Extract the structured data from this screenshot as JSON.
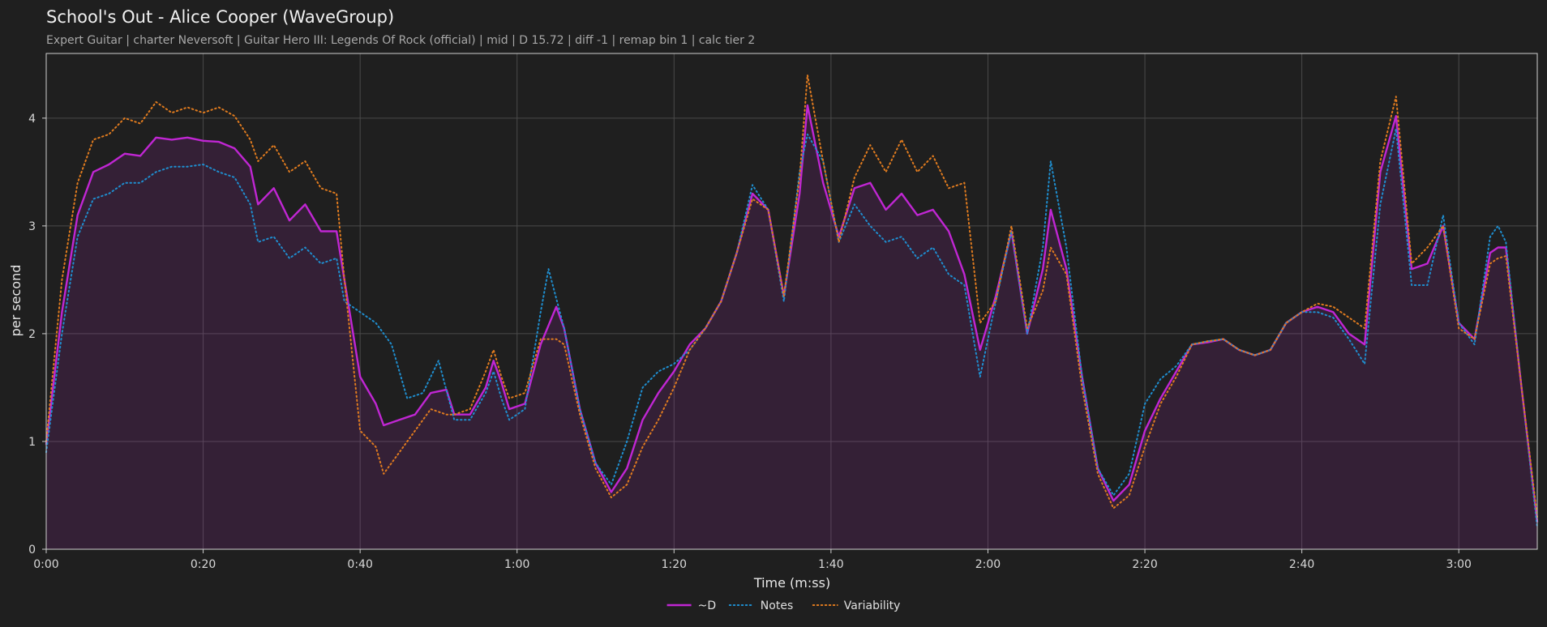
{
  "chart_data": {
    "type": "line",
    "title": "School's Out - Alice Cooper (WaveGroup)",
    "subtitle": "Expert Guitar  |  charter Neversoft  |  Guitar Hero III: Legends Of Rock (official)  |  mid  |  D 15.72  |  diff -1  |  remap bin 1  |  calc tier 2",
    "xlabel": "Time (m:ss)",
    "ylabel": "per second",
    "xlim": [
      0,
      190
    ],
    "ylim": [
      0,
      4.6
    ],
    "x_ticks": [
      {
        "value": 0,
        "label": "0:00"
      },
      {
        "value": 20,
        "label": "0:20"
      },
      {
        "value": 40,
        "label": "0:40"
      },
      {
        "value": 60,
        "label": "1:00"
      },
      {
        "value": 80,
        "label": "1:20"
      },
      {
        "value": 100,
        "label": "1:40"
      },
      {
        "value": 120,
        "label": "2:00"
      },
      {
        "value": 140,
        "label": "2:20"
      },
      {
        "value": 160,
        "label": "2:40"
      },
      {
        "value": 180,
        "label": "3:00"
      }
    ],
    "y_ticks": [
      {
        "value": 0,
        "label": "0"
      },
      {
        "value": 1,
        "label": "1"
      },
      {
        "value": 2,
        "label": "2"
      },
      {
        "value": 3,
        "label": "3"
      },
      {
        "value": 4,
        "label": "4"
      }
    ],
    "grid": true,
    "legend_position": "bottom-center",
    "series": [
      {
        "name": "~D",
        "color": "#c026d3",
        "style": "solid",
        "fill": true,
        "points": [
          [
            0,
            0.97
          ],
          [
            2,
            2.2
          ],
          [
            4,
            3.1
          ],
          [
            6,
            3.5
          ],
          [
            8,
            3.57
          ],
          [
            10,
            3.67
          ],
          [
            12,
            3.65
          ],
          [
            14,
            3.82
          ],
          [
            16,
            3.8
          ],
          [
            18,
            3.82
          ],
          [
            20,
            3.79
          ],
          [
            22,
            3.78
          ],
          [
            24,
            3.72
          ],
          [
            26,
            3.55
          ],
          [
            27,
            3.2
          ],
          [
            29,
            3.35
          ],
          [
            31,
            3.05
          ],
          [
            33,
            3.2
          ],
          [
            35,
            2.95
          ],
          [
            37,
            2.95
          ],
          [
            38,
            2.5
          ],
          [
            40,
            1.6
          ],
          [
            42,
            1.35
          ],
          [
            43,
            1.15
          ],
          [
            45,
            1.2
          ],
          [
            47,
            1.25
          ],
          [
            49,
            1.45
          ],
          [
            51,
            1.48
          ],
          [
            52,
            1.25
          ],
          [
            54,
            1.25
          ],
          [
            56,
            1.5
          ],
          [
            57,
            1.75
          ],
          [
            58,
            1.55
          ],
          [
            59,
            1.3
          ],
          [
            61,
            1.35
          ],
          [
            63,
            1.9
          ],
          [
            65,
            2.25
          ],
          [
            66,
            2.05
          ],
          [
            68,
            1.3
          ],
          [
            70,
            0.8
          ],
          [
            72,
            0.53
          ],
          [
            74,
            0.75
          ],
          [
            76,
            1.2
          ],
          [
            78,
            1.45
          ],
          [
            80,
            1.65
          ],
          [
            82,
            1.9
          ],
          [
            84,
            2.05
          ],
          [
            86,
            2.3
          ],
          [
            88,
            2.75
          ],
          [
            90,
            3.3
          ],
          [
            92,
            3.15
          ],
          [
            94,
            2.35
          ],
          [
            96,
            3.3
          ],
          [
            97,
            4.12
          ],
          [
            99,
            3.4
          ],
          [
            101,
            2.9
          ],
          [
            103,
            3.35
          ],
          [
            105,
            3.4
          ],
          [
            107,
            3.15
          ],
          [
            109,
            3.3
          ],
          [
            111,
            3.1
          ],
          [
            113,
            3.15
          ],
          [
            115,
            2.95
          ],
          [
            117,
            2.55
          ],
          [
            119,
            1.85
          ],
          [
            121,
            2.35
          ],
          [
            123,
            2.95
          ],
          [
            125,
            2.0
          ],
          [
            127,
            2.6
          ],
          [
            128,
            3.15
          ],
          [
            130,
            2.6
          ],
          [
            132,
            1.6
          ],
          [
            134,
            0.75
          ],
          [
            136,
            0.45
          ],
          [
            138,
            0.6
          ],
          [
            140,
            1.1
          ],
          [
            142,
            1.4
          ],
          [
            144,
            1.65
          ],
          [
            146,
            1.9
          ],
          [
            148,
            1.92
          ],
          [
            150,
            1.95
          ],
          [
            152,
            1.85
          ],
          [
            154,
            1.8
          ],
          [
            156,
            1.85
          ],
          [
            158,
            2.1
          ],
          [
            160,
            2.2
          ],
          [
            162,
            2.25
          ],
          [
            164,
            2.2
          ],
          [
            166,
            2.0
          ],
          [
            168,
            1.9
          ],
          [
            170,
            3.5
          ],
          [
            172,
            4.02
          ],
          [
            174,
            2.6
          ],
          [
            176,
            2.65
          ],
          [
            178,
            3.0
          ],
          [
            180,
            2.1
          ],
          [
            182,
            1.95
          ],
          [
            184,
            2.75
          ],
          [
            185,
            2.8
          ],
          [
            186,
            2.8
          ],
          [
            188,
            1.5
          ],
          [
            190,
            0.25
          ]
        ]
      },
      {
        "name": "Notes",
        "color": "#1f8ecf",
        "style": "dotted",
        "fill": false,
        "points": [
          [
            0,
            0.9
          ],
          [
            2,
            2.0
          ],
          [
            4,
            2.9
          ],
          [
            6,
            3.25
          ],
          [
            8,
            3.3
          ],
          [
            10,
            3.4
          ],
          [
            12,
            3.4
          ],
          [
            14,
            3.5
          ],
          [
            16,
            3.55
          ],
          [
            18,
            3.55
          ],
          [
            20,
            3.57
          ],
          [
            22,
            3.5
          ],
          [
            24,
            3.45
          ],
          [
            26,
            3.2
          ],
          [
            27,
            2.85
          ],
          [
            29,
            2.9
          ],
          [
            31,
            2.7
          ],
          [
            33,
            2.8
          ],
          [
            35,
            2.65
          ],
          [
            37,
            2.7
          ],
          [
            38,
            2.3
          ],
          [
            40,
            2.2
          ],
          [
            42,
            2.1
          ],
          [
            44,
            1.9
          ],
          [
            46,
            1.4
          ],
          [
            48,
            1.45
          ],
          [
            50,
            1.75
          ],
          [
            52,
            1.2
          ],
          [
            54,
            1.2
          ],
          [
            56,
            1.45
          ],
          [
            57,
            1.65
          ],
          [
            58,
            1.4
          ],
          [
            59,
            1.2
          ],
          [
            61,
            1.3
          ],
          [
            63,
            2.2
          ],
          [
            64,
            2.6
          ],
          [
            66,
            2.05
          ],
          [
            68,
            1.3
          ],
          [
            70,
            0.8
          ],
          [
            72,
            0.6
          ],
          [
            74,
            1.0
          ],
          [
            76,
            1.5
          ],
          [
            78,
            1.65
          ],
          [
            80,
            1.72
          ],
          [
            82,
            1.85
          ],
          [
            84,
            2.05
          ],
          [
            86,
            2.3
          ],
          [
            88,
            2.75
          ],
          [
            90,
            3.38
          ],
          [
            92,
            3.15
          ],
          [
            94,
            2.3
          ],
          [
            96,
            3.5
          ],
          [
            97,
            3.85
          ],
          [
            99,
            3.6
          ],
          [
            101,
            2.85
          ],
          [
            103,
            3.2
          ],
          [
            105,
            3.0
          ],
          [
            107,
            2.85
          ],
          [
            109,
            2.9
          ],
          [
            111,
            2.7
          ],
          [
            113,
            2.8
          ],
          [
            115,
            2.55
          ],
          [
            117,
            2.45
          ],
          [
            119,
            1.6
          ],
          [
            121,
            2.3
          ],
          [
            123,
            2.95
          ],
          [
            125,
            2.0
          ],
          [
            127,
            2.8
          ],
          [
            128,
            3.6
          ],
          [
            130,
            2.8
          ],
          [
            132,
            1.6
          ],
          [
            134,
            0.75
          ],
          [
            136,
            0.5
          ],
          [
            138,
            0.7
          ],
          [
            140,
            1.35
          ],
          [
            142,
            1.58
          ],
          [
            144,
            1.7
          ],
          [
            146,
            1.9
          ],
          [
            148,
            1.93
          ],
          [
            150,
            1.95
          ],
          [
            152,
            1.85
          ],
          [
            154,
            1.8
          ],
          [
            156,
            1.85
          ],
          [
            158,
            2.1
          ],
          [
            160,
            2.2
          ],
          [
            162,
            2.2
          ],
          [
            164,
            2.15
          ],
          [
            166,
            1.95
          ],
          [
            168,
            1.72
          ],
          [
            170,
            3.2
          ],
          [
            172,
            3.9
          ],
          [
            174,
            2.45
          ],
          [
            176,
            2.45
          ],
          [
            178,
            3.1
          ],
          [
            180,
            2.1
          ],
          [
            182,
            1.9
          ],
          [
            184,
            2.9
          ],
          [
            185,
            3.0
          ],
          [
            186,
            2.85
          ],
          [
            188,
            1.5
          ],
          [
            190,
            0.2
          ]
        ]
      },
      {
        "name": "Variability",
        "color": "#e07b1f",
        "style": "dotted",
        "fill": false,
        "points": [
          [
            0,
            1.0
          ],
          [
            2,
            2.5
          ],
          [
            4,
            3.4
          ],
          [
            6,
            3.8
          ],
          [
            8,
            3.85
          ],
          [
            10,
            4.0
          ],
          [
            12,
            3.95
          ],
          [
            14,
            4.15
          ],
          [
            16,
            4.05
          ],
          [
            18,
            4.1
          ],
          [
            20,
            4.05
          ],
          [
            22,
            4.1
          ],
          [
            24,
            4.02
          ],
          [
            26,
            3.8
          ],
          [
            27,
            3.6
          ],
          [
            29,
            3.75
          ],
          [
            31,
            3.5
          ],
          [
            33,
            3.6
          ],
          [
            35,
            3.35
          ],
          [
            37,
            3.3
          ],
          [
            38,
            2.5
          ],
          [
            40,
            1.1
          ],
          [
            42,
            0.95
          ],
          [
            43,
            0.7
          ],
          [
            45,
            0.9
          ],
          [
            47,
            1.1
          ],
          [
            49,
            1.3
          ],
          [
            51,
            1.25
          ],
          [
            52,
            1.25
          ],
          [
            54,
            1.3
          ],
          [
            56,
            1.65
          ],
          [
            57,
            1.85
          ],
          [
            58,
            1.6
          ],
          [
            59,
            1.4
          ],
          [
            61,
            1.45
          ],
          [
            63,
            1.95
          ],
          [
            65,
            1.95
          ],
          [
            66,
            1.9
          ],
          [
            68,
            1.25
          ],
          [
            70,
            0.75
          ],
          [
            72,
            0.48
          ],
          [
            74,
            0.6
          ],
          [
            76,
            0.95
          ],
          [
            78,
            1.2
          ],
          [
            80,
            1.5
          ],
          [
            82,
            1.85
          ],
          [
            84,
            2.05
          ],
          [
            86,
            2.3
          ],
          [
            88,
            2.75
          ],
          [
            90,
            3.25
          ],
          [
            92,
            3.15
          ],
          [
            94,
            2.35
          ],
          [
            96,
            3.45
          ],
          [
            97,
            4.4
          ],
          [
            99,
            3.6
          ],
          [
            101,
            2.85
          ],
          [
            103,
            3.45
          ],
          [
            105,
            3.75
          ],
          [
            107,
            3.5
          ],
          [
            109,
            3.8
          ],
          [
            111,
            3.5
          ],
          [
            113,
            3.65
          ],
          [
            115,
            3.35
          ],
          [
            117,
            3.4
          ],
          [
            119,
            2.1
          ],
          [
            121,
            2.3
          ],
          [
            123,
            3.0
          ],
          [
            125,
            2.05
          ],
          [
            127,
            2.4
          ],
          [
            128,
            2.8
          ],
          [
            130,
            2.55
          ],
          [
            132,
            1.5
          ],
          [
            134,
            0.7
          ],
          [
            136,
            0.38
          ],
          [
            138,
            0.5
          ],
          [
            140,
            0.95
          ],
          [
            142,
            1.35
          ],
          [
            144,
            1.6
          ],
          [
            146,
            1.9
          ],
          [
            148,
            1.93
          ],
          [
            150,
            1.95
          ],
          [
            152,
            1.85
          ],
          [
            154,
            1.8
          ],
          [
            156,
            1.85
          ],
          [
            158,
            2.1
          ],
          [
            160,
            2.2
          ],
          [
            162,
            2.28
          ],
          [
            164,
            2.25
          ],
          [
            166,
            2.15
          ],
          [
            168,
            2.05
          ],
          [
            170,
            3.6
          ],
          [
            172,
            4.2
          ],
          [
            174,
            2.65
          ],
          [
            176,
            2.8
          ],
          [
            178,
            3.0
          ],
          [
            180,
            2.05
          ],
          [
            182,
            1.95
          ],
          [
            184,
            2.65
          ],
          [
            185,
            2.7
          ],
          [
            186,
            2.72
          ],
          [
            188,
            1.5
          ],
          [
            190,
            0.3
          ]
        ]
      }
    ]
  }
}
